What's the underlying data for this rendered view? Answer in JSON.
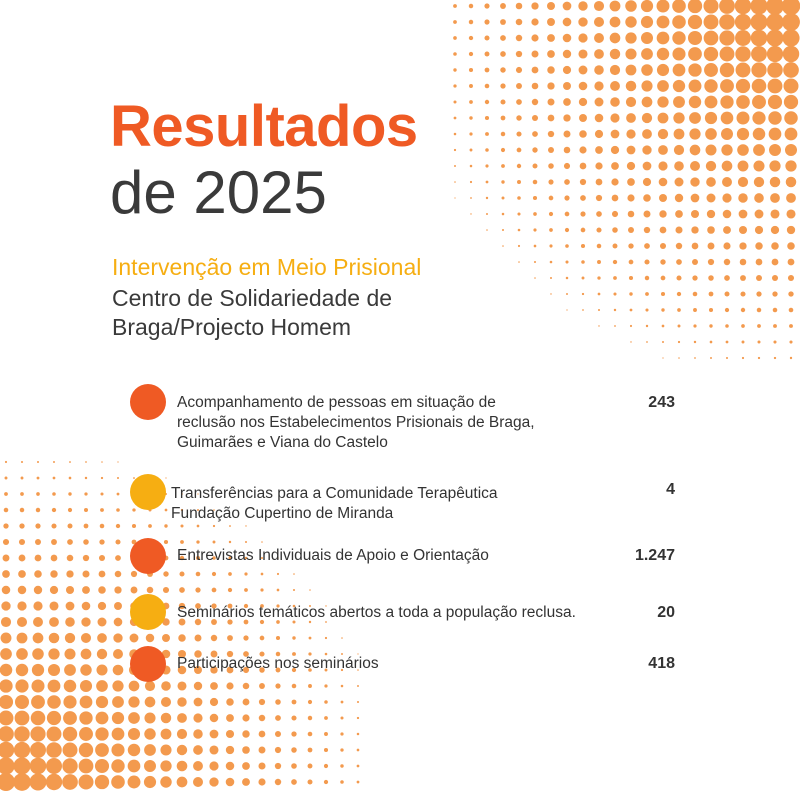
{
  "header": {
    "title": "Resultados",
    "year_line": "de 2025",
    "program": "Intervenção em Meio Prisional",
    "organization": "Centro de Solidariedade de Braga/Projecto Homem"
  },
  "colors": {
    "orange": "#ef5a24",
    "yellow": "#f6ae12",
    "dots": "#f39a4e",
    "text": "#333333"
  },
  "results": [
    {
      "description": "Acompanhamento de pessoas em situação de reclusão nos Estabelecimentos Prisionais de Braga, Guimarães e Viana do Castelo",
      "value": "243",
      "bullet_color": "orange"
    },
    {
      "description": "Transferências para a Comunidade Terapêutica Fundação Cupertino de Miranda",
      "value": "4",
      "bullet_color": "yellow"
    },
    {
      "description": "Entrevistas Individuais de Apoio e Orientação",
      "value": "1.247",
      "bullet_color": "orange"
    },
    {
      "description": "Seminários temáticos abertos a toda a população reclusa.",
      "value": "20",
      "bullet_color": "yellow"
    },
    {
      "description": "Participações nos seminários",
      "value": "418",
      "bullet_color": "orange"
    }
  ]
}
